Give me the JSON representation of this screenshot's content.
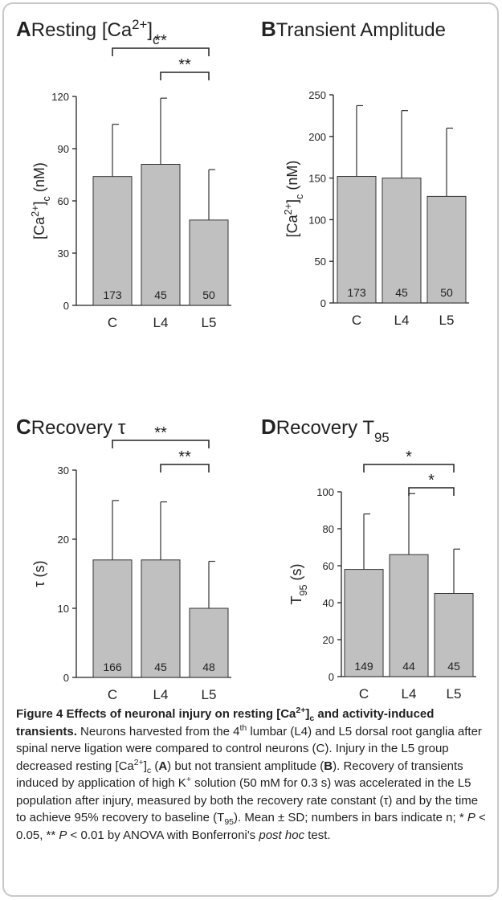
{
  "chart_data": [
    {
      "type": "bar",
      "letter": "A",
      "title": [
        {
          "text": "Resting [Ca"
        },
        {
          "text": "2+",
          "style": "sup"
        },
        {
          "text": "]"
        },
        {
          "text": "c",
          "style": "sub"
        }
      ],
      "ylabel": [
        {
          "text": "[Ca"
        },
        {
          "text": "2+",
          "style": "sup"
        },
        {
          "text": "]"
        },
        {
          "text": "c",
          "style": "sub"
        },
        {
          "text": " (nM)"
        }
      ],
      "categories": [
        "C",
        "L4",
        "L5"
      ],
      "values": [
        74,
        81,
        49
      ],
      "errors": [
        30,
        38,
        29
      ],
      "n_labels": [
        173,
        45,
        50
      ],
      "ylim": [
        0,
        120
      ],
      "yticks": [
        0,
        30,
        60,
        90,
        120
      ],
      "color": "#c0c0c0",
      "significance": [
        {
          "pair": [
            "C",
            "L5"
          ],
          "label": "**"
        },
        {
          "pair": [
            "L4",
            "L5"
          ],
          "label": "**"
        }
      ]
    },
    {
      "type": "bar",
      "letter": "B",
      "title": [
        {
          "text": "Transient Amplitude"
        }
      ],
      "ylabel": [
        {
          "text": "[Ca"
        },
        {
          "text": "2+",
          "style": "sup"
        },
        {
          "text": "]"
        },
        {
          "text": "c",
          "style": "sub"
        },
        {
          "text": " (nM)"
        }
      ],
      "categories": [
        "C",
        "L4",
        "L5"
      ],
      "values": [
        152,
        150,
        128
      ],
      "errors": [
        85,
        81,
        82
      ],
      "n_labels": [
        173,
        45,
        50
      ],
      "ylim": [
        0,
        250
      ],
      "yticks": [
        0,
        50,
        100,
        150,
        200,
        250
      ],
      "color": "#c0c0c0",
      "significance": []
    },
    {
      "type": "bar",
      "letter": "C",
      "title": [
        {
          "text": "Recovery τ"
        }
      ],
      "ylabel": [
        {
          "text": "τ (s)"
        }
      ],
      "categories": [
        "C",
        "L4",
        "L5"
      ],
      "values": [
        17,
        17,
        10
      ],
      "errors": [
        8.6,
        8.4,
        6.8
      ],
      "n_labels": [
        166,
        45,
        48
      ],
      "ylim": [
        0,
        30
      ],
      "yticks": [
        0,
        10,
        20,
        30
      ],
      "color": "#c0c0c0",
      "significance": [
        {
          "pair": [
            "C",
            "L5"
          ],
          "label": "**"
        },
        {
          "pair": [
            "L4",
            "L5"
          ],
          "label": "**"
        }
      ]
    },
    {
      "type": "bar",
      "letter": "D",
      "title": [
        {
          "text": "Recovery T"
        },
        {
          "text": "95",
          "style": "sub"
        }
      ],
      "ylabel": [
        {
          "text": "T"
        },
        {
          "text": "95",
          "style": "sub"
        },
        {
          "text": " (s)"
        }
      ],
      "categories": [
        "C",
        "L4",
        "L5"
      ],
      "values": [
        58,
        66,
        45
      ],
      "errors": [
        30,
        33,
        24
      ],
      "n_labels": [
        149,
        44,
        45
      ],
      "ylim": [
        0,
        100
      ],
      "yticks": [
        0,
        20,
        40,
        60,
        80,
        100
      ],
      "color": "#c0c0c0",
      "significance": [
        {
          "pair": [
            "C",
            "L5"
          ],
          "label": "*"
        },
        {
          "pair": [
            "L4",
            "L5"
          ],
          "label": "*"
        }
      ]
    }
  ],
  "caption": [
    {
      "text": "Figure 4 Effects of neuronal injury on resting [Ca",
      "style": "bold"
    },
    {
      "text": "2+",
      "style": "bold sup"
    },
    {
      "text": "]",
      "style": "bold"
    },
    {
      "text": "c",
      "style": "bold sub"
    },
    {
      "text": " and activity-induced transients.",
      "style": "bold"
    },
    {
      "text": " Neurons harvested from the 4"
    },
    {
      "text": "th",
      "style": "sup"
    },
    {
      "text": " lumbar (L4) and L5 dorsal root ganglia after spinal nerve ligation were compared to control neurons (C). Injury in the L5 group decreased resting [Ca"
    },
    {
      "text": "2+",
      "style": "sup"
    },
    {
      "text": "]"
    },
    {
      "text": "c",
      "style": "sub"
    },
    {
      "text": " ("
    },
    {
      "text": "A",
      "style": "bold"
    },
    {
      "text": ") but not transient amplitude ("
    },
    {
      "text": "B",
      "style": "bold"
    },
    {
      "text": "). Recovery of transients induced by application of high K"
    },
    {
      "text": "+",
      "style": "sup"
    },
    {
      "text": " solution (50 mM for 0.3 s) was accelerated in the L5 population after injury, measured by both the recovery rate constant (τ) and by the time to achieve 95% recovery to baseline (T"
    },
    {
      "text": "95",
      "style": "sub"
    },
    {
      "text": "). Mean ± SD; numbers in bars indicate n; * "
    },
    {
      "text": "P",
      "style": "italic"
    },
    {
      "text": " < 0.05, ** "
    },
    {
      "text": "P",
      "style": "italic"
    },
    {
      "text": " < 0.01 by ANOVA with Bonferroni's "
    },
    {
      "text": "post hoc",
      "style": "italic"
    },
    {
      "text": " test."
    }
  ]
}
